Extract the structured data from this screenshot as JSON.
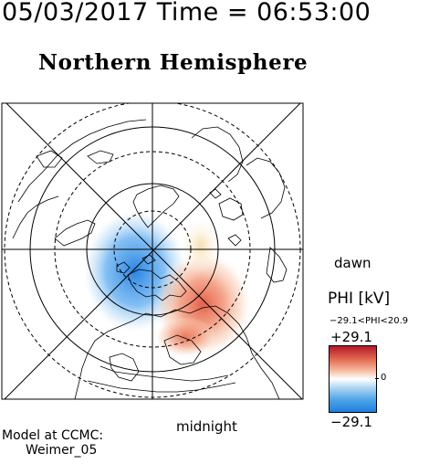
{
  "header": {
    "text": "05/03/2017 Time = 06:53:00"
  },
  "title": "Northern Hemisphere",
  "labels": {
    "dawn": "dawn",
    "midnight": "midnight"
  },
  "colorbar": {
    "title": "PHI [kV]",
    "range": "−29.1<PHI<20.9",
    "max_label": "+29.1",
    "min_label": "−29.1",
    "zero_label": "0",
    "max_color": "#b2182b",
    "min_color": "#1f7fe0"
  },
  "credits": {
    "line1": "Model at CCMC:",
    "line2": "Weimer_05"
  }
}
